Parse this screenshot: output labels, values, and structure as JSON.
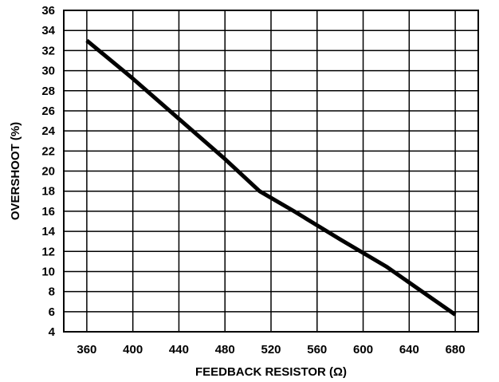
{
  "chart_data": {
    "type": "line",
    "title": "",
    "xlabel": "FEEDBACK RESISTOR (Ω)",
    "ylabel": "OVERSHOOT (%)",
    "xlim": [
      340,
      700
    ],
    "ylim": [
      4,
      36
    ],
    "x_ticks": [
      "360",
      "400",
      "440",
      "480",
      "520",
      "560",
      "600",
      "640",
      "680"
    ],
    "y_ticks": [
      "4",
      "6",
      "8",
      "10",
      "12",
      "14",
      "16",
      "18",
      "20",
      "22",
      "24",
      "26",
      "28",
      "30",
      "32",
      "34",
      "36"
    ],
    "grid": true,
    "legend": "none",
    "line_color": "#000000",
    "series": [
      {
        "x": [
          360,
          400,
          440,
          480,
          510,
          540,
          580,
          620,
          660,
          680
        ],
        "y": [
          33,
          29.2,
          25.2,
          21.2,
          18,
          16,
          13.2,
          10.5,
          7.3,
          5.7
        ]
      }
    ]
  }
}
